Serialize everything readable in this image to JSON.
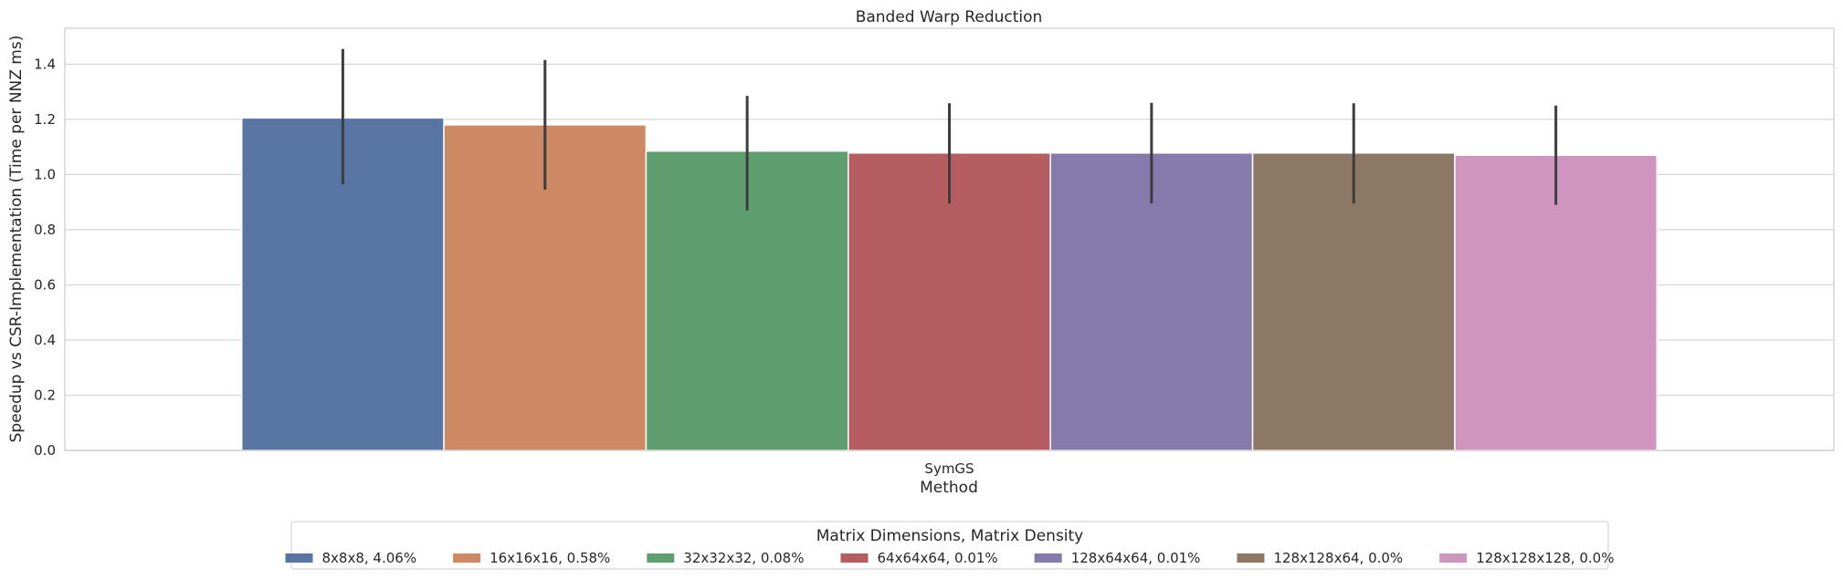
{
  "chart_data": {
    "type": "bar",
    "title": "Banded Warp Reduction",
    "xlabel": "Method",
    "ylabel": "Speedup vs CSR-Implementation (Time per NNZ ms)",
    "categories": [
      "SymGS"
    ],
    "ylim": [
      0,
      1.53
    ],
    "yticks": [
      0.0,
      0.2,
      0.4,
      0.6,
      0.8,
      1.0,
      1.2,
      1.4
    ],
    "grid": true,
    "legend": {
      "title": "Matrix Dimensions, Matrix Density",
      "position": "bottom-center"
    },
    "series": [
      {
        "name": "8x8x8, 4.06%",
        "values": [
          1.205
        ],
        "err_low": [
          0.965
        ],
        "err_high": [
          1.455
        ],
        "color": "#5875a4"
      },
      {
        "name": "16x16x16, 0.58%",
        "values": [
          1.18
        ],
        "err_low": [
          0.945
        ],
        "err_high": [
          1.415
        ],
        "color": "#cc8963"
      },
      {
        "name": "32x32x32, 0.08%",
        "values": [
          1.085
        ],
        "err_low": [
          0.87
        ],
        "err_high": [
          1.285
        ],
        "color": "#5f9e6e"
      },
      {
        "name": "64x64x64, 0.01%",
        "values": [
          1.078
        ],
        "err_low": [
          0.895
        ],
        "err_high": [
          1.258
        ],
        "color": "#b55d60"
      },
      {
        "name": "128x64x64, 0.01%",
        "values": [
          1.078
        ],
        "err_low": [
          0.895
        ],
        "err_high": [
          1.26
        ],
        "color": "#857aab"
      },
      {
        "name": "128x128x64, 0.0%",
        "values": [
          1.078
        ],
        "err_low": [
          0.895
        ],
        "err_high": [
          1.258
        ],
        "color": "#8d7866"
      },
      {
        "name": "128x128x128, 0.0%",
        "values": [
          1.07
        ],
        "err_low": [
          0.89
        ],
        "err_high": [
          1.25
        ],
        "color": "#d095bf"
      }
    ]
  }
}
